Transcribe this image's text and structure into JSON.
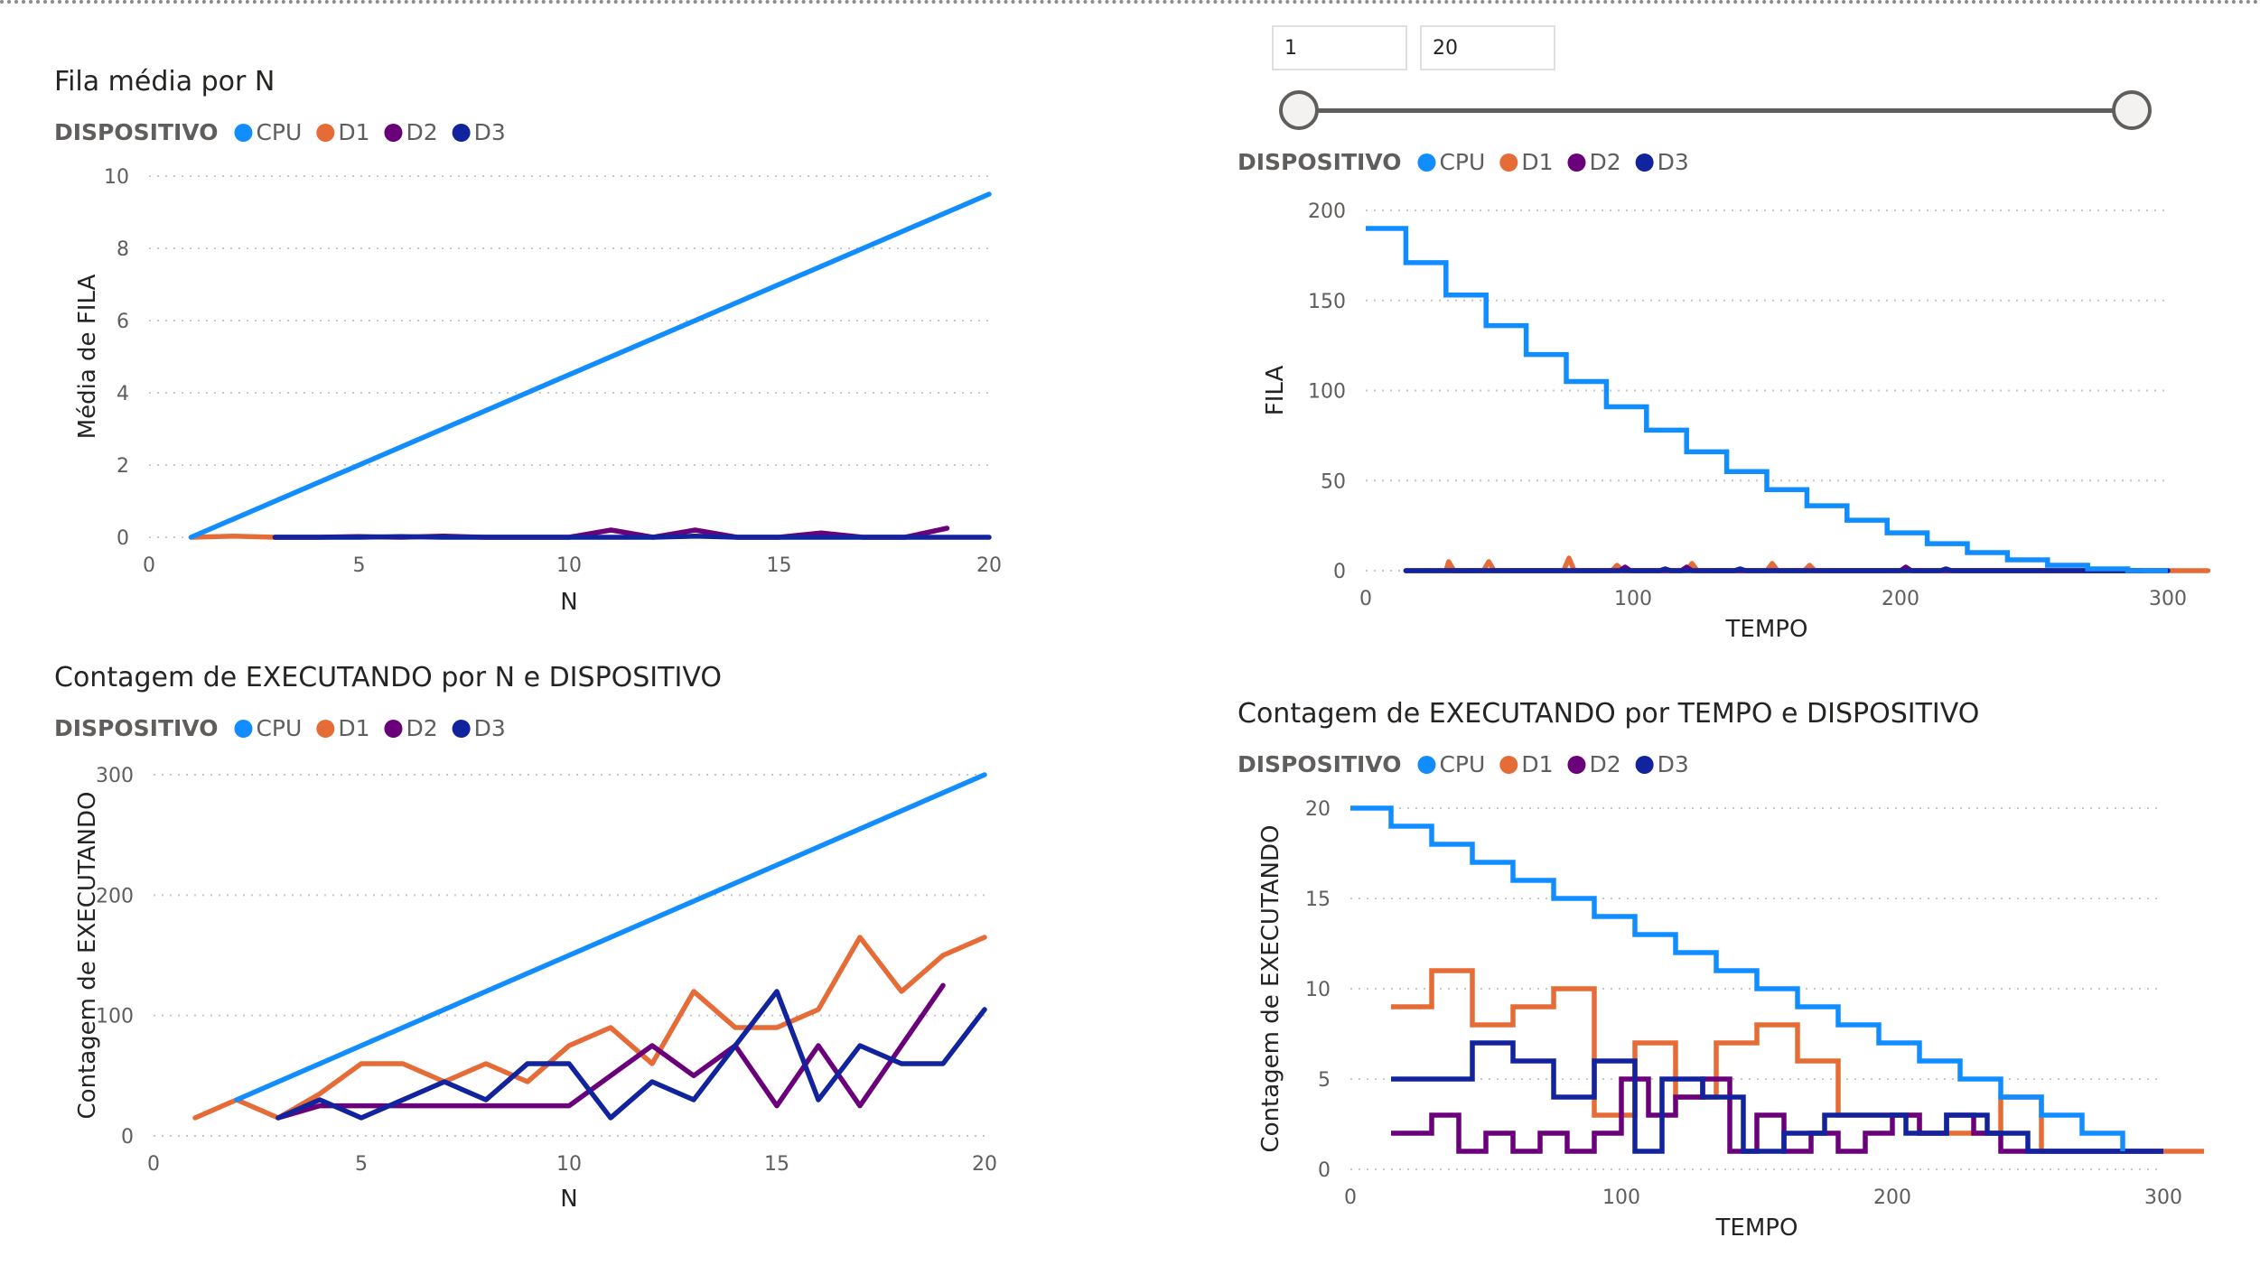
{
  "slicer": {
    "min_value": "1",
    "max_value": "20"
  },
  "colors": {
    "CPU": "#118DFF",
    "D1": "#E66C37",
    "D2": "#6B007B",
    "D3": "#12239E"
  },
  "chart_data": [
    {
      "id": "fila-media-por-n",
      "type": "line",
      "title": "Fila média por N",
      "legend_title": "DISPOSITIVO",
      "legend": [
        "CPU",
        "D1",
        "D2",
        "D3"
      ],
      "xlabel": "N",
      "ylabel": "Média de FILA",
      "xlim": [
        0,
        20
      ],
      "ylim": [
        0,
        10
      ],
      "xticks": [
        0,
        5,
        10,
        15,
        20
      ],
      "yticks": [
        0,
        2,
        4,
        6,
        8,
        10
      ],
      "grid": true,
      "legend_position": "top-left",
      "series": [
        {
          "name": "CPU",
          "x": [
            1,
            20
          ],
          "y": [
            0,
            9.5
          ]
        },
        {
          "name": "D1",
          "x": [
            1,
            2,
            3
          ],
          "y": [
            0,
            0.03,
            0
          ]
        },
        {
          "name": "D2",
          "x": [
            3,
            4,
            5,
            6,
            7,
            8,
            9,
            10,
            11,
            12,
            13,
            14,
            15,
            16,
            17,
            18,
            19
          ],
          "y": [
            0,
            0,
            0.02,
            0,
            0.03,
            0,
            0,
            0,
            0.2,
            0,
            0.2,
            0,
            0,
            0.12,
            0,
            0,
            0.25
          ]
        },
        {
          "name": "D3",
          "x": [
            3,
            4,
            5,
            6,
            7,
            8,
            9,
            10,
            11,
            12,
            13,
            14,
            15,
            16,
            17,
            18,
            19,
            20
          ],
          "y": [
            0,
            0,
            0,
            0.02,
            0,
            0,
            0,
            0,
            0,
            0,
            0.03,
            0,
            0,
            0,
            0,
            0,
            0,
            0
          ]
        }
      ]
    },
    {
      "id": "fila-por-tempo",
      "type": "line",
      "title": "",
      "legend_title": "DISPOSITIVO",
      "legend": [
        "CPU",
        "D1",
        "D2",
        "D3"
      ],
      "xlabel": "TEMPO",
      "ylabel": "FILA",
      "xlim": [
        0,
        300
      ],
      "ylim": [
        0,
        200
      ],
      "xticks": [
        0,
        100,
        200,
        300
      ],
      "yticks": [
        0,
        50,
        100,
        150,
        200
      ],
      "grid": true,
      "legend_position": "top-left",
      "series": [
        {
          "name": "CPU",
          "step": true,
          "x": [
            0,
            15,
            30,
            45,
            60,
            75,
            90,
            105,
            120,
            135,
            150,
            165,
            180,
            195,
            210,
            225,
            240,
            255,
            270,
            285,
            300
          ],
          "y": [
            190,
            171,
            153,
            136,
            120,
            105,
            91,
            78,
            66,
            55,
            45,
            36,
            28,
            21,
            15,
            10,
            6,
            3,
            1,
            0,
            0
          ]
        },
        {
          "name": "D1",
          "step": false,
          "x": [
            30,
            31,
            33,
            44,
            46,
            48,
            74,
            76,
            78,
            92,
            94,
            96,
            120,
            122,
            124,
            150,
            152,
            154,
            164,
            166,
            168,
            250,
            315
          ],
          "y": [
            0,
            5,
            0,
            0,
            5,
            0,
            0,
            7,
            0,
            0,
            3,
            0,
            0,
            4,
            0,
            0,
            4,
            0,
            0,
            3,
            0,
            0,
            0
          ]
        },
        {
          "name": "D2",
          "step": false,
          "x": [
            15,
            95,
            97,
            99,
            118,
            120,
            122,
            200,
            202,
            204,
            290
          ],
          "y": [
            0,
            0,
            2,
            0,
            0,
            2,
            0,
            0,
            2,
            0,
            0
          ]
        },
        {
          "name": "D3",
          "step": false,
          "x": [
            15,
            110,
            112,
            114,
            138,
            140,
            142,
            215,
            217,
            219,
            300
          ],
          "y": [
            0,
            0,
            1,
            0,
            0,
            1,
            0,
            0,
            1,
            0,
            0
          ]
        }
      ]
    },
    {
      "id": "contagem-executando-por-n",
      "type": "line",
      "title": "Contagem de EXECUTANDO por N e DISPOSITIVO",
      "legend_title": "DISPOSITIVO",
      "legend": [
        "CPU",
        "D1",
        "D2",
        "D3"
      ],
      "xlabel": "N",
      "ylabel": "Contagem de EXECUTANDO",
      "xlim": [
        0,
        20
      ],
      "ylim": [
        0,
        300
      ],
      "xticks": [
        0,
        5,
        10,
        15,
        20
      ],
      "yticks": [
        0,
        100,
        200,
        300
      ],
      "grid": true,
      "legend_position": "top-left",
      "series": [
        {
          "name": "CPU",
          "x": [
            2,
            20
          ],
          "y": [
            30,
            300
          ]
        },
        {
          "name": "D1",
          "x": [
            1,
            2,
            3,
            4,
            5,
            6,
            7,
            8,
            9,
            10,
            11,
            12,
            13,
            14,
            15,
            16,
            17,
            18,
            19,
            20
          ],
          "y": [
            15,
            30,
            15,
            35,
            60,
            60,
            45,
            60,
            45,
            75,
            90,
            60,
            120,
            90,
            90,
            105,
            165,
            120,
            150,
            165
          ]
        },
        {
          "name": "D2",
          "x": [
            3,
            4,
            5,
            6,
            7,
            8,
            9,
            10,
            11,
            12,
            13,
            14,
            15,
            16,
            17,
            18,
            19
          ],
          "y": [
            15,
            25,
            25,
            25,
            25,
            25,
            25,
            25,
            50,
            75,
            50,
            75,
            25,
            75,
            25,
            75,
            125
          ]
        },
        {
          "name": "D3",
          "x": [
            3,
            4,
            5,
            6,
            7,
            8,
            9,
            10,
            11,
            12,
            13,
            14,
            15,
            16,
            17,
            18,
            19,
            20
          ],
          "y": [
            15,
            30,
            15,
            30,
            45,
            30,
            60,
            60,
            15,
            45,
            30,
            75,
            120,
            30,
            75,
            60,
            60,
            105
          ]
        }
      ]
    },
    {
      "id": "contagem-executando-por-tempo",
      "type": "line",
      "title": "Contagem de EXECUTANDO por TEMPO e DISPOSITIVO",
      "legend_title": "DISPOSITIVO",
      "legend": [
        "CPU",
        "D1",
        "D2",
        "D3"
      ],
      "xlabel": "TEMPO",
      "ylabel": "Contagem de EXECUTANDO",
      "xlim": [
        0,
        300
      ],
      "ylim": [
        0,
        20
      ],
      "xticks": [
        0,
        100,
        200,
        300
      ],
      "yticks": [
        0,
        5,
        10,
        15,
        20
      ],
      "grid": true,
      "legend_position": "top-left",
      "series": [
        {
          "name": "CPU",
          "step": true,
          "x": [
            0,
            15,
            30,
            45,
            60,
            75,
            90,
            105,
            120,
            135,
            150,
            165,
            180,
            195,
            210,
            225,
            240,
            255,
            270,
            285
          ],
          "y": [
            20,
            19,
            18,
            17,
            16,
            15,
            14,
            13,
            12,
            11,
            10,
            9,
            8,
            7,
            6,
            5,
            4,
            3,
            2,
            1
          ]
        },
        {
          "name": "D1",
          "step": true,
          "x": [
            15,
            30,
            45,
            60,
            75,
            90,
            105,
            120,
            135,
            150,
            165,
            180,
            195,
            210,
            225,
            240,
            255,
            270,
            285,
            300,
            315
          ],
          "y": [
            9,
            11,
            8,
            9,
            10,
            3,
            7,
            4,
            7,
            8,
            6,
            3,
            3,
            2,
            2,
            4,
            1,
            1,
            1,
            1,
            1
          ]
        },
        {
          "name": "D2",
          "step": true,
          "x": [
            15,
            30,
            40,
            50,
            60,
            70,
            80,
            90,
            100,
            110,
            120,
            130,
            140,
            150,
            160,
            170,
            180,
            190,
            200,
            210,
            220,
            230,
            240,
            250,
            260,
            270,
            280,
            290,
            300
          ],
          "y": [
            2,
            3,
            1,
            2,
            1,
            2,
            1,
            2,
            5,
            3,
            4,
            5,
            1,
            3,
            1,
            2,
            1,
            2,
            3,
            2,
            3,
            2,
            1,
            1,
            1,
            1,
            1,
            1,
            1
          ]
        },
        {
          "name": "D3",
          "step": true,
          "x": [
            15,
            45,
            60,
            75,
            90,
            105,
            115,
            130,
            145,
            160,
            175,
            190,
            205,
            220,
            235,
            250,
            265,
            280,
            300
          ],
          "y": [
            5,
            7,
            6,
            4,
            6,
            1,
            5,
            4,
            1,
            2,
            3,
            3,
            2,
            3,
            2,
            1,
            1,
            1,
            1
          ]
        }
      ]
    }
  ]
}
